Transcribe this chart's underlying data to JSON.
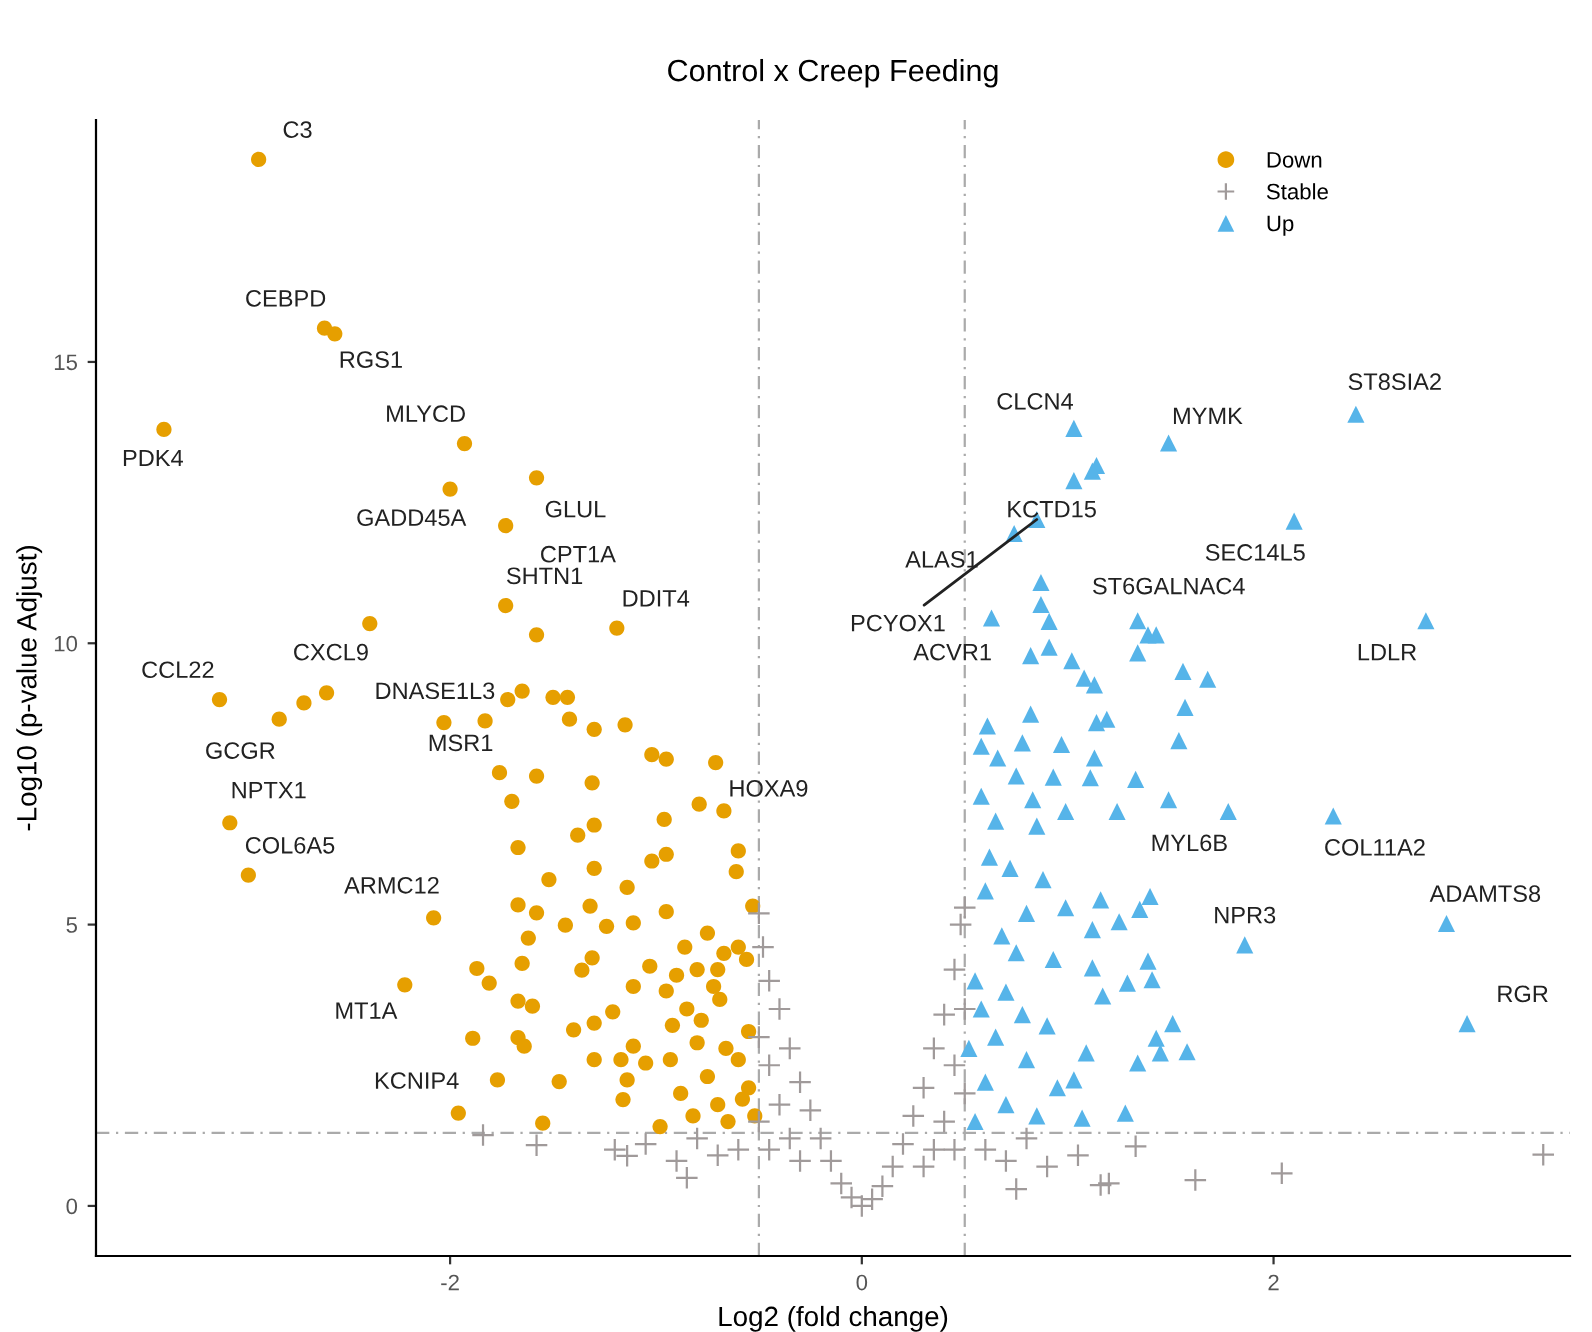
{
  "chart_data": {
    "type": "scatter",
    "title": "Control x Creep Feeding",
    "xlabel": "Log2 (fold change)",
    "ylabel": "-Log10 (p-value Adjust)",
    "xlim": [
      -3.72,
      3.44
    ],
    "ylim": [
      -0.89,
      19.3
    ],
    "xticks": [
      -2,
      0,
      2
    ],
    "yticks": [
      0,
      5,
      10,
      15
    ],
    "grid": false,
    "legend": "top right",
    "ref_lines": [
      {
        "axis": "x",
        "value": -0.5,
        "color": "#aaaaaa",
        "line_style": "dashed"
      },
      {
        "axis": "x",
        "value": 0.5,
        "color": "#aaaaaa",
        "line_style": "dashed"
      },
      {
        "axis": "y",
        "value": 1.3,
        "color": "#aaaaaa",
        "line_style": "dashed"
      }
    ],
    "series": [
      {
        "name": "Down",
        "color": "#e69f00",
        "marker": "circle",
        "x": [
          -2.93,
          -2.61,
          -2.56,
          -3.39,
          -1.93,
          -2.0,
          -1.58,
          -1.73,
          -1.73,
          -1.58,
          -1.19,
          -2.39,
          -3.12,
          -2.83,
          -2.71,
          -2.6,
          -3.07,
          -2.98,
          -2.08,
          -2.22,
          -1.96,
          -1.76,
          -0.71,
          -2.03,
          -1.83,
          -1.72,
          -1.65,
          -1.5,
          -1.43,
          -1.42,
          -1.3,
          -1.15,
          -1.02,
          -0.95,
          -1.58,
          -1.31,
          -1.7,
          -0.79,
          -0.67,
          -0.96,
          -1.3,
          -1.38,
          -1.67,
          -0.95,
          -0.6,
          -1.3,
          -1.02,
          -1.52,
          -0.61,
          -1.14,
          -1.67,
          -1.58,
          -1.32,
          -1.44,
          -1.24,
          -1.11,
          -0.95,
          -0.53,
          -1.62,
          -1.65,
          -1.87,
          -1.81,
          -1.31,
          -1.36,
          -1.03,
          -0.75,
          -0.67,
          -0.56,
          -0.8,
          -1.67,
          -1.6,
          -1.11,
          -0.95,
          -1.21,
          -0.69,
          -1.89,
          -1.67,
          -1.64,
          -1.4,
          -1.3,
          -0.92,
          -1.11,
          -1.3,
          -1.17,
          -1.77,
          -1.47,
          -1.14,
          -1.05,
          -1.55,
          -1.16,
          -0.98,
          -0.9,
          -0.85,
          -0.8,
          -0.75,
          -0.7,
          -0.65,
          -0.6,
          -0.55,
          -0.52,
          -0.88,
          -0.82,
          -0.6,
          -0.72,
          -0.55,
          -0.78,
          -0.66,
          -0.93,
          -0.58,
          -0.7,
          -0.86
        ],
        "values": [
          18.6,
          15.6,
          15.5,
          13.8,
          13.55,
          12.74,
          12.94,
          12.09,
          10.67,
          10.15,
          10.27,
          10.35,
          9.0,
          8.65,
          8.94,
          9.12,
          6.81,
          5.88,
          5.12,
          3.93,
          1.65,
          7.7,
          7.88,
          8.59,
          8.62,
          9.0,
          9.15,
          9.04,
          9.04,
          8.65,
          8.47,
          8.55,
          8.02,
          7.94,
          7.64,
          7.52,
          7.19,
          7.14,
          7.02,
          6.87,
          6.77,
          6.59,
          6.37,
          6.25,
          6.31,
          6.0,
          6.13,
          5.8,
          5.94,
          5.66,
          5.35,
          5.21,
          5.33,
          4.99,
          4.97,
          5.03,
          5.23,
          5.33,
          4.76,
          4.31,
          4.22,
          3.96,
          4.41,
          4.19,
          4.26,
          4.85,
          4.49,
          4.38,
          4.2,
          3.64,
          3.55,
          3.9,
          3.82,
          3.45,
          3.67,
          2.98,
          2.99,
          2.84,
          3.13,
          3.25,
          3.21,
          2.84,
          2.6,
          2.6,
          2.24,
          2.21,
          2.24,
          2.54,
          1.47,
          1.89,
          1.41,
          4.1,
          3.5,
          2.9,
          2.3,
          1.8,
          1.5,
          2.6,
          3.1,
          1.6,
          2.0,
          1.6,
          4.6,
          3.9,
          2.1,
          3.3,
          2.8,
          2.6,
          1.9,
          4.2,
          4.6
        ]
      },
      {
        "name": "Stable",
        "color": "#a09a9a",
        "marker": "cross",
        "x": [
          -0.5,
          -0.48,
          -0.45,
          -0.4,
          -0.35,
          -0.3,
          -0.25,
          -0.2,
          -0.15,
          -0.1,
          -0.05,
          0,
          0.05,
          0.1,
          0.15,
          0.2,
          0.25,
          0.3,
          0.35,
          0.4,
          0.45,
          0.48,
          0.5,
          -0.45,
          -0.4,
          -0.35,
          -0.3,
          -0.45,
          -0.5,
          -0.5,
          0.45,
          0.4,
          0.35,
          0.3,
          0.45,
          0.5,
          0.5,
          -0.6,
          -0.7,
          -0.8,
          -0.9,
          -1.05,
          -1.2,
          -0.85,
          0.6,
          0.7,
          0.8,
          0.9,
          1.05,
          1.2,
          0.75,
          -1.84,
          -1.58,
          -1.14,
          1.33,
          1.62,
          2.04,
          3.31,
          1.16
        ],
        "values": [
          5.2,
          4.6,
          4.0,
          3.5,
          2.8,
          2.2,
          1.7,
          1.2,
          0.8,
          0.4,
          0.15,
          0,
          0.12,
          0.35,
          0.7,
          1.1,
          1.6,
          2.1,
          2.8,
          3.4,
          4.2,
          5.0,
          5.3,
          2.5,
          1.8,
          1.2,
          0.8,
          1.0,
          1.5,
          3.0,
          2.5,
          1.5,
          1.0,
          0.7,
          1.0,
          2.0,
          3.5,
          1.0,
          0.9,
          1.2,
          0.8,
          1.1,
          1.0,
          0.5,
          1.0,
          0.8,
          1.2,
          0.7,
          0.9,
          0.4,
          0.3,
          1.26,
          1.08,
          0.89,
          1.06,
          0.46,
          0.58,
          0.91,
          0.37
        ]
      },
      {
        "name": "Up",
        "color": "#56b4e9",
        "marker": "triangle",
        "x": [
          1.03,
          1.49,
          2.4,
          1.14,
          1.12,
          1.03,
          0.85,
          0.74,
          2.1,
          0.87,
          0.63,
          0.87,
          0.91,
          1.34,
          1.39,
          1.43,
          1.34,
          2.74,
          0.82,
          0.91,
          1.02,
          1.08,
          1.13,
          1.56,
          1.68,
          1.57,
          1.54,
          0.61,
          0.82,
          1.14,
          1.19,
          0.58,
          0.78,
          0.97,
          1.13,
          0.66,
          1.33,
          1.11,
          0.93,
          0.75,
          0.58,
          0.83,
          1.49,
          0.99,
          1.24,
          0.65,
          0.85,
          1.78,
          2.29,
          2.84,
          1.86,
          2.94,
          1.4,
          1.35,
          1.25,
          1.16,
          0.99,
          1.12,
          1.39,
          1.41,
          1.29,
          1.12,
          1.51,
          1.58,
          1.43,
          1.45,
          1.34,
          1.28,
          1.07,
          1.03,
          1.17,
          1.09,
          0.93,
          0.55,
          0.6,
          0.65,
          0.7,
          0.75,
          0.8,
          0.55,
          0.6,
          0.7,
          0.8,
          0.9,
          0.85,
          0.95,
          0.52,
          0.62,
          0.72,
          0.88,
          0.58,
          0.78,
          0.68
        ],
        "values": [
          13.82,
          13.56,
          14.07,
          13.16,
          13.06,
          12.89,
          12.2,
          11.95,
          12.17,
          11.08,
          10.45,
          10.69,
          10.39,
          10.4,
          10.15,
          10.15,
          9.83,
          10.4,
          9.78,
          9.93,
          9.69,
          9.38,
          9.26,
          9.5,
          9.36,
          8.86,
          8.27,
          8.53,
          8.74,
          8.59,
          8.65,
          8.17,
          8.23,
          8.2,
          7.96,
          7.96,
          7.58,
          7.61,
          7.62,
          7.64,
          7.28,
          7.22,
          7.22,
          7.01,
          7.01,
          6.84,
          6.75,
          7.01,
          6.93,
          5.02,
          4.64,
          3.24,
          5.5,
          5.27,
          5.05,
          5.44,
          5.3,
          4.91,
          4.35,
          4.02,
          3.96,
          4.23,
          3.24,
          2.74,
          2.98,
          2.72,
          2.54,
          1.65,
          1.56,
          2.24,
          3.73,
          2.72,
          4.38,
          1.5,
          2.2,
          3.0,
          3.8,
          4.5,
          5.2,
          4.0,
          5.6,
          1.8,
          2.6,
          3.2,
          1.6,
          2.1,
          2.8,
          6.2,
          6.0,
          5.8,
          3.5,
          3.4,
          4.8
        ]
      }
    ],
    "annotations": [
      {
        "text": "C3",
        "x": -2.93,
        "y": 18.6
      },
      {
        "text": "CEBPD",
        "x": -2.61,
        "y": 15.6
      },
      {
        "text": "RGS1",
        "x": -2.56,
        "y": 15.5
      },
      {
        "text": "PDK4",
        "x": -3.39,
        "y": 13.8
      },
      {
        "text": "MLYCD",
        "x": -1.93,
        "y": 13.55
      },
      {
        "text": "GADD45A",
        "x": -2.0,
        "y": 12.74
      },
      {
        "text": "GLUL",
        "x": -1.58,
        "y": 12.94
      },
      {
        "text": "CPT1A",
        "x": -1.73,
        "y": 12.09
      },
      {
        "text": "SHTN1",
        "x": -1.73,
        "y": 10.67
      },
      {
        "text": "DDIT4",
        "x": -1.19,
        "y": 10.27
      },
      {
        "text": "CXCL9",
        "x": -2.39,
        "y": 10.35
      },
      {
        "text": "CCL22",
        "x": -3.12,
        "y": 9.0
      },
      {
        "text": "GCGR",
        "x": -2.83,
        "y": 8.65
      },
      {
        "text": "DNASE1L3",
        "x": -2.6,
        "y": 9.12
      },
      {
        "text": "MSR1",
        "x": -1.76,
        "y": 7.7
      },
      {
        "text": "HOXA9",
        "x": -0.71,
        "y": 7.88
      },
      {
        "text": "NPTX1",
        "x": -3.07,
        "y": 6.81
      },
      {
        "text": "COL6A5",
        "x": -2.98,
        "y": 5.88
      },
      {
        "text": "ARMC12",
        "x": -2.08,
        "y": 5.12
      },
      {
        "text": "MT1A",
        "x": -2.22,
        "y": 3.93
      },
      {
        "text": "KCNIP4",
        "x": -1.96,
        "y": 1.65
      },
      {
        "text": "CLCN4",
        "x": 1.03,
        "y": 13.82
      },
      {
        "text": "MYMK",
        "x": 1.49,
        "y": 13.56
      },
      {
        "text": "ST8SIA2",
        "x": 2.4,
        "y": 14.07
      },
      {
        "text": "KCTD15",
        "x": 1.03,
        "y": 12.89
      },
      {
        "text": "ALAS1",
        "x": 0.74,
        "y": 11.95
      },
      {
        "text": "PCYOX1",
        "x": 0.85,
        "y": 12.2
      },
      {
        "text": "SEC14L5",
        "x": 2.1,
        "y": 12.17
      },
      {
        "text": "ST6GALNAC4",
        "x": 0.87,
        "y": 11.08
      },
      {
        "text": "ACVR1",
        "x": 0.63,
        "y": 10.45
      },
      {
        "text": "LDLR",
        "x": 2.74,
        "y": 10.4
      },
      {
        "text": "MYL6B",
        "x": 1.78,
        "y": 7.01
      },
      {
        "text": "COL11A2",
        "x": 2.29,
        "y": 6.93
      },
      {
        "text": "ADAMTS8",
        "x": 2.84,
        "y": 5.02
      },
      {
        "text": "NPR3",
        "x": 1.86,
        "y": 4.64
      },
      {
        "text": "RGR",
        "x": 2.94,
        "y": 3.24
      }
    ]
  }
}
